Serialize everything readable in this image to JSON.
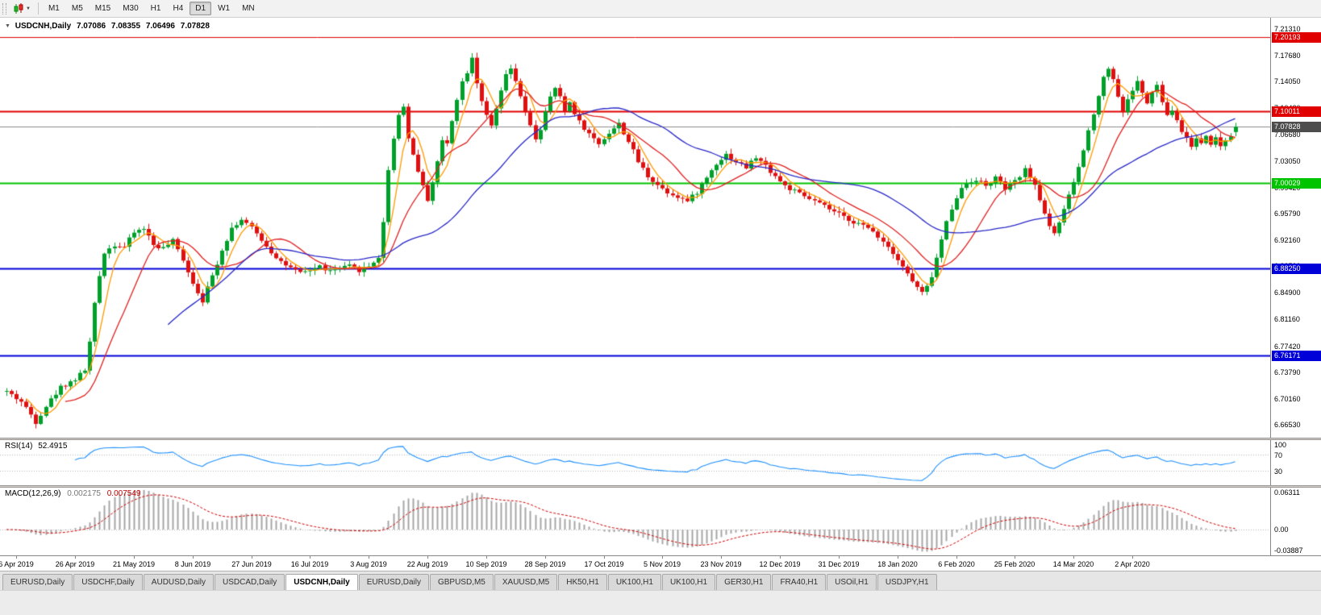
{
  "toolbar": {
    "timeframes": [
      {
        "label": "M1"
      },
      {
        "label": "M5"
      },
      {
        "label": "M15"
      },
      {
        "label": "M30"
      },
      {
        "label": "H1"
      },
      {
        "label": "H4"
      },
      {
        "label": "D1",
        "active": true
      },
      {
        "label": "W1"
      },
      {
        "label": "MN"
      }
    ]
  },
  "chart": {
    "title": {
      "symbol_period": "USDCNH,Daily",
      "open": "7.07086",
      "high": "7.08355",
      "low": "7.06496",
      "close": "7.07828"
    },
    "price_range": {
      "max": 7.229,
      "min": 6.648
    },
    "y_axis": {
      "ticks": [
        "7.21310",
        "7.17680",
        "7.14050",
        "7.10420",
        "7.06680",
        "7.03050",
        "6.99420",
        "6.95790",
        "6.92160",
        "6.88530",
        "6.84900",
        "6.81160",
        "6.77420",
        "6.73790",
        "6.70160",
        "6.66530"
      ]
    },
    "x_axis": {
      "labels": [
        "6 Apr 2019",
        "26 Apr 2019",
        "21 May 2019",
        "8 Jun 2019",
        "27 Jun 2019",
        "16 Jul 2019",
        "3 Aug 2019",
        "22 Aug 2019",
        "10 Sep 2019",
        "28 Sep 2019",
        "17 Oct 2019",
        "5 Nov 2019",
        "23 Nov 2019",
        "12 Dec 2019",
        "31 Dec 2019",
        "18 Jan 2020",
        "6 Feb 2020",
        "25 Feb 2020",
        "14 Mar 2020",
        "2 Apr 2020"
      ],
      "label_indices": [
        2,
        14,
        26,
        38,
        50,
        62,
        74,
        86,
        98,
        110,
        122,
        134,
        146,
        158,
        170,
        182,
        194,
        206,
        218,
        230
      ]
    },
    "levels": [
      {
        "value": 7.20193,
        "label": "7.20193",
        "color": "#E00000",
        "width": 1
      },
      {
        "value": 7.10011,
        "label": "7.10011",
        "color": "#E00000",
        "width": 2
      },
      {
        "value": 7.00029,
        "label": "7.00029",
        "color": "#00C400",
        "width": 2
      },
      {
        "value": 6.8825,
        "label": "6.88250",
        "color": "#0000D8",
        "width": 2
      },
      {
        "value": 6.76171,
        "label": "6.76171",
        "color": "#0000D8",
        "width": 2
      }
    ],
    "price_line": {
      "value": 7.07828,
      "label": "7.07828",
      "bg": "#4D4D4D",
      "line_color": "#8C8C8C"
    }
  },
  "rsi": {
    "label": "RSI(14)",
    "value": "52.4915",
    "axis_labels": [
      "100",
      "70",
      "30"
    ],
    "axis_values": [
      100,
      70,
      30
    ],
    "level_lines": [
      70,
      30
    ],
    "line_color": "#1E90FF"
  },
  "macd": {
    "label": "MACD(12,26,9)",
    "main": "0.002175",
    "signal": "0.007549",
    "axis_labels": [
      "0.06311",
      "0.00",
      "-0.03887"
    ],
    "scale_max": 0.06311,
    "scale_min": -0.03887,
    "hist_color": "#A6A6A6",
    "signal_color": "#D00000"
  },
  "tab_bar": {
    "tabs": [
      {
        "label": "EURUSD,Daily"
      },
      {
        "label": "USDCHF,Daily"
      },
      {
        "label": "AUDUSD,Daily"
      },
      {
        "label": "USDCAD,Daily"
      },
      {
        "label": "USDCNH,Daily",
        "active": true
      },
      {
        "label": "EURUSD,Daily"
      },
      {
        "label": "GBPUSD,M5"
      },
      {
        "label": "XAUUSD,M5"
      },
      {
        "label": "HK50,H1"
      },
      {
        "label": "UK100,H1"
      },
      {
        "label": "UK100,H1"
      },
      {
        "label": "GER30,H1"
      },
      {
        "label": "FRA40,H1"
      },
      {
        "label": "USOil,H1"
      },
      {
        "label": "USDJPY,H1"
      }
    ]
  },
  "colors": {
    "candle_up": "#00A02A",
    "candle_down": "#E01010",
    "ma_fast": "#FF9900",
    "ma_mid": "#E02020",
    "ma_slow": "#2828C8"
  },
  "chart_data": {
    "type": "candlestick",
    "symbol": "USDCNH",
    "period": "Daily",
    "title": "USDCNH,Daily",
    "candle_count": 252,
    "last_candle": {
      "open": 7.07086,
      "high": 7.08355,
      "low": 7.06496,
      "close": 7.07828
    },
    "anchors": [
      [
        0,
        6.712
      ],
      [
        3,
        6.698
      ],
      [
        5,
        6.68
      ],
      [
        6,
        6.67
      ],
      [
        8,
        6.692
      ],
      [
        11,
        6.718
      ],
      [
        14,
        6.729
      ],
      [
        16,
        6.742
      ],
      [
        17,
        6.78
      ],
      [
        18,
        6.832
      ],
      [
        19,
        6.872
      ],
      [
        20,
        6.905
      ],
      [
        22,
        6.915
      ],
      [
        24,
        6.912
      ],
      [
        26,
        6.932
      ],
      [
        28,
        6.938
      ],
      [
        30,
        6.915
      ],
      [
        32,
        6.91
      ],
      [
        34,
        6.92
      ],
      [
        36,
        6.895
      ],
      [
        38,
        6.862
      ],
      [
        40,
        6.838
      ],
      [
        42,
        6.872
      ],
      [
        44,
        6.908
      ],
      [
        46,
        6.938
      ],
      [
        48,
        6.95
      ],
      [
        50,
        6.938
      ],
      [
        52,
        6.922
      ],
      [
        54,
        6.905
      ],
      [
        56,
        6.892
      ],
      [
        58,
        6.882
      ],
      [
        60,
        6.875
      ],
      [
        62,
        6.88
      ],
      [
        64,
        6.885
      ],
      [
        66,
        6.878
      ],
      [
        68,
        6.882
      ],
      [
        70,
        6.885
      ],
      [
        72,
        6.88
      ],
      [
        74,
        6.885
      ],
      [
        76,
        6.898
      ],
      [
        77,
        6.945
      ],
      [
        78,
        7.02
      ],
      [
        79,
        7.062
      ],
      [
        80,
        7.095
      ],
      [
        81,
        7.108
      ],
      [
        82,
        7.062
      ],
      [
        83,
        7.04
      ],
      [
        84,
        7.018
      ],
      [
        85,
        6.995
      ],
      [
        86,
        6.978
      ],
      [
        87,
        7.002
      ],
      [
        88,
        7.03
      ],
      [
        89,
        7.058
      ],
      [
        90,
        7.055
      ],
      [
        91,
        7.088
      ],
      [
        92,
        7.118
      ],
      [
        93,
        7.14
      ],
      [
        94,
        7.155
      ],
      [
        95,
        7.175
      ],
      [
        96,
        7.14
      ],
      [
        97,
        7.115
      ],
      [
        98,
        7.092
      ],
      [
        99,
        7.078
      ],
      [
        100,
        7.102
      ],
      [
        101,
        7.128
      ],
      [
        102,
        7.148
      ],
      [
        103,
        7.158
      ],
      [
        104,
        7.142
      ],
      [
        105,
        7.118
      ],
      [
        106,
        7.098
      ],
      [
        107,
        7.078
      ],
      [
        108,
        7.062
      ],
      [
        109,
        7.075
      ],
      [
        110,
        7.098
      ],
      [
        111,
        7.118
      ],
      [
        112,
        7.132
      ],
      [
        113,
        7.118
      ],
      [
        114,
        7.1
      ],
      [
        115,
        7.112
      ],
      [
        116,
        7.098
      ],
      [
        117,
        7.085
      ],
      [
        119,
        7.068
      ],
      [
        121,
        7.055
      ],
      [
        123,
        7.07
      ],
      [
        125,
        7.082
      ],
      [
        127,
        7.058
      ],
      [
        129,
        7.03
      ],
      [
        131,
        7.01
      ],
      [
        133,
        6.998
      ],
      [
        135,
        6.988
      ],
      [
        137,
        6.982
      ],
      [
        139,
        6.975
      ],
      [
        141,
        6.988
      ],
      [
        143,
        7.008
      ],
      [
        145,
        7.028
      ],
      [
        147,
        7.04
      ],
      [
        149,
        7.03
      ],
      [
        151,
        7.022
      ],
      [
        153,
        7.036
      ],
      [
        155,
        7.024
      ],
      [
        157,
        7.01
      ],
      [
        159,
        6.996
      ],
      [
        162,
        6.985
      ],
      [
        165,
        6.975
      ],
      [
        168,
        6.964
      ],
      [
        171,
        6.953
      ],
      [
        174,
        6.944
      ],
      [
        177,
        6.934
      ],
      [
        179,
        6.92
      ],
      [
        181,
        6.905
      ],
      [
        183,
        6.885
      ],
      [
        185,
        6.864
      ],
      [
        187,
        6.848
      ],
      [
        188,
        6.856
      ],
      [
        189,
        6.872
      ],
      [
        190,
        6.896
      ],
      [
        191,
        6.922
      ],
      [
        192,
        6.946
      ],
      [
        193,
        6.966
      ],
      [
        194,
        6.982
      ],
      [
        195,
        6.992
      ],
      [
        196,
        7.0
      ],
      [
        198,
        7.006
      ],
      [
        200,
        6.996
      ],
      [
        202,
        7.008
      ],
      [
        204,
        6.992
      ],
      [
        206,
        7.002
      ],
      [
        208,
        7.018
      ],
      [
        209,
        7.01
      ],
      [
        210,
        6.995
      ],
      [
        211,
        6.978
      ],
      [
        212,
        6.958
      ],
      [
        213,
        6.942
      ],
      [
        214,
        6.932
      ],
      [
        215,
        6.946
      ],
      [
        216,
        6.962
      ],
      [
        217,
        6.982
      ],
      [
        218,
        7.002
      ],
      [
        219,
        7.022
      ],
      [
        220,
        7.046
      ],
      [
        221,
        7.072
      ],
      [
        222,
        7.098
      ],
      [
        223,
        7.122
      ],
      [
        224,
        7.146
      ],
      [
        225,
        7.16
      ],
      [
        226,
        7.145
      ],
      [
        227,
        7.12
      ],
      [
        228,
        7.1
      ],
      [
        229,
        7.114
      ],
      [
        230,
        7.13
      ],
      [
        231,
        7.14
      ],
      [
        232,
        7.126
      ],
      [
        233,
        7.11
      ],
      [
        234,
        7.124
      ],
      [
        235,
        7.136
      ],
      [
        236,
        7.112
      ],
      [
        237,
        7.092
      ],
      [
        238,
        7.102
      ],
      [
        239,
        7.086
      ],
      [
        240,
        7.072
      ],
      [
        241,
        7.062
      ],
      [
        242,
        7.052
      ],
      [
        243,
        7.062
      ],
      [
        244,
        7.056
      ],
      [
        245,
        7.066
      ],
      [
        246,
        7.056
      ],
      [
        247,
        7.062
      ],
      [
        248,
        7.052
      ],
      [
        249,
        7.06
      ],
      [
        250,
        7.066
      ],
      [
        251,
        7.078
      ]
    ],
    "moving_averages": [
      {
        "period": 5,
        "color": "#FF9900"
      },
      {
        "period": 13,
        "color": "#E02020"
      },
      {
        "period": 34,
        "color": "#2828C8"
      }
    ],
    "indicators": {
      "rsi_period": 14,
      "macd": [
        12,
        26,
        9
      ]
    }
  }
}
